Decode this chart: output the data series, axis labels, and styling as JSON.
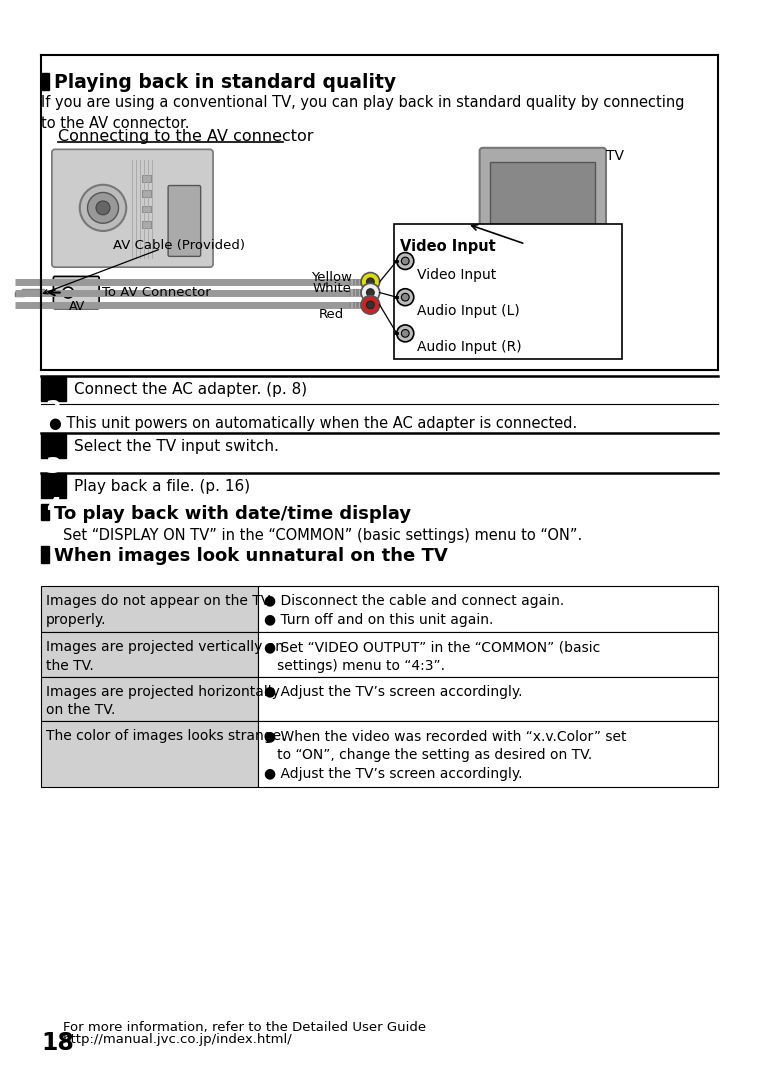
{
  "bg_color": "#ffffff",
  "section1_title": "Playing back in standard quality",
  "section1_body": "If you are using a conventional TV, you can play back in standard quality by connecting\nto the AV connector.",
  "diagram_title": "Connecting to the AV connector",
  "step2_label": "2",
  "step2_text": "Connect the AC adapter. (p. 8)",
  "step2_bullet": "This unit powers on automatically when the AC adapter is connected.",
  "step3_label": "3",
  "step3_text": "Select the TV input switch.",
  "step4_label": "4",
  "step4_text": "Play back a file. (p. 16)",
  "section2_title": "To play back with date/time display",
  "section2_body": "Set “DISPLAY ON TV” in the “COMMON” (basic settings) menu to “ON”.",
  "section3_title": "When images look unnatural on the TV",
  "table_rows": [
    {
      "left": "Images do not appear on the TV\nproperly.",
      "right": "● Disconnect the cable and connect again.\n● Turn off and on this unit again."
    },
    {
      "left": "Images are projected vertically on\nthe TV.",
      "right": "● Set “VIDEO OUTPUT” in the “COMMON” (basic\n   settings) menu to “4:3”."
    },
    {
      "left": "Images are projected horizontally\non the TV.",
      "right": "● Adjust the TV’s screen accordingly."
    },
    {
      "left": "The color of images looks strange.",
      "right": "● When the video was recorded with “x.v.Color” set\n   to “ON”, change the setting as desired on TV.\n● Adjust the TV’s screen accordingly."
    }
  ],
  "footer_number": "18",
  "footer_line1": "For more information, refer to the Detailed User Guide",
  "footer_line2": "http://manual.jvc.co.jp/index.html/"
}
